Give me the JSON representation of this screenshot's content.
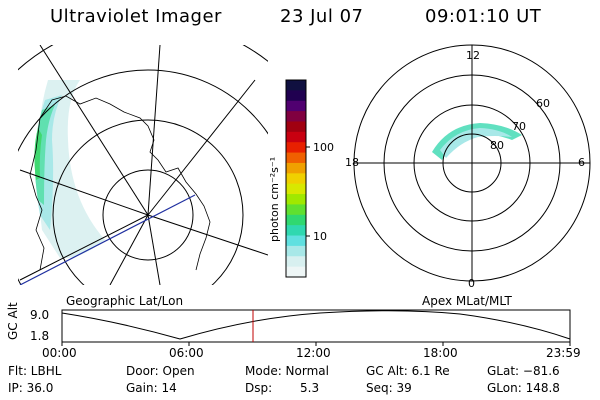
{
  "header": {
    "instrument": "Ultraviolet Imager",
    "date": "23 Jul 07",
    "time": "09:01:10 UT"
  },
  "colorbar": {
    "unit_label": "photon cm⁻²s⁻¹",
    "ticks": [
      "100",
      "10"
    ],
    "colors": [
      "#101040",
      "#200050",
      "#500070",
      "#800040",
      "#a00010",
      "#c80010",
      "#e82000",
      "#f06000",
      "#f0a000",
      "#f0d000",
      "#d8e800",
      "#a0e800",
      "#60e030",
      "#30d870",
      "#30d8b0",
      "#60e0e0",
      "#a8e8e8",
      "#d8f0f0",
      "#eef6f6"
    ]
  },
  "left_map": {
    "caption": "Geographic Lat/Lon"
  },
  "right_map": {
    "caption": "Apex MLat/MLT",
    "mlt_labels": {
      "top": "12",
      "left": "18",
      "right": "6",
      "bottom": "0"
    },
    "lat_labels": [
      "60",
      "70",
      "80"
    ]
  },
  "altitude_plot": {
    "ylabel": "GC Alt",
    "yticks": [
      "9.0",
      "1.8"
    ],
    "xticks": [
      "00:00",
      "06:00",
      "12:00",
      "18:00",
      "23:59"
    ],
    "current_time_marker": "09:01"
  },
  "info": {
    "flt": "Flt: LBHL",
    "ip": "IP: 36.0",
    "door": "Door: Open",
    "gain": "Gain: 14",
    "mode": "Mode: Normal",
    "dsp_label": "Dsp:",
    "dsp_value": "5.3",
    "gc_alt": "GC Alt: 6.1 Re",
    "seq": "Seq: 39",
    "glat": "GLat: −81.6",
    "glon": "GLon: 148.8"
  }
}
